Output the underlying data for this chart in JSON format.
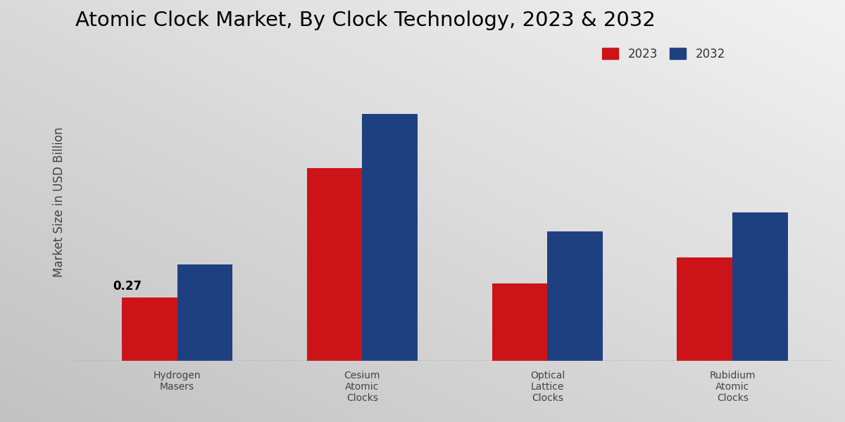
{
  "title": "Atomic Clock Market, By Clock Technology, 2023 & 2032",
  "ylabel": "Market Size in USD Billion",
  "categories": [
    "Hydrogen\nMasers",
    "Cesium\nAtomic\nClocks",
    "Optical\nLattice\nClocks",
    "Rubidium\nAtomic\nClocks"
  ],
  "values_2023": [
    0.27,
    0.82,
    0.33,
    0.44
  ],
  "values_2032": [
    0.41,
    1.05,
    0.55,
    0.63
  ],
  "color_2023": "#cc1418",
  "color_2032": "#1f4080",
  "bar_width": 0.3,
  "annotation_label": "0.27",
  "annotation_idx": 0,
  "ylim_min": 0,
  "ylim_max": 1.35,
  "bg_color_topleft": "#c8c8c8",
  "bg_color_center": "#e8e8e8",
  "bg_color_bottomright": "#f2f2f2",
  "legend_labels": [
    "2023",
    "2032"
  ],
  "dashed_line_y": 0,
  "title_fontsize": 21,
  "axis_label_fontsize": 12,
  "tick_label_fontsize": 10,
  "legend_fontsize": 12,
  "annotation_fontsize": 12
}
